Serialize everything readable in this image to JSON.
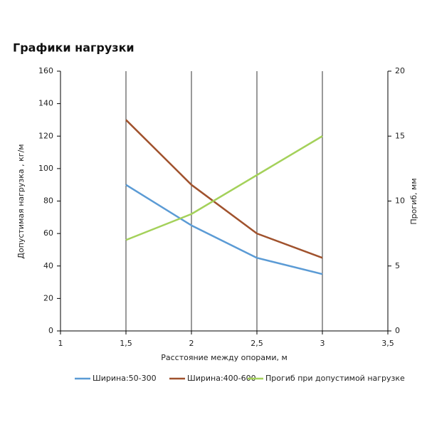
{
  "chart_data": {
    "type": "line",
    "title": "Графики нагрузки",
    "x_label": "Расстояние между опорами, м",
    "y_label": "Допустимая нагрузка , кг/м",
    "y2_label": "Прогиб, мм",
    "x": [
      1.5,
      2,
      2.5,
      3
    ],
    "xlim": [
      1,
      3.5
    ],
    "xticks": [
      1,
      {
        "value": 1.5,
        "label": "1,5"
      },
      2,
      {
        "value": 2.5,
        "label": "2,5"
      },
      3,
      {
        "value": 3.5,
        "label": "3,5"
      }
    ],
    "ylim": [
      0,
      160
    ],
    "yticks": [
      0,
      20,
      40,
      60,
      80,
      100,
      120,
      140,
      160
    ],
    "y2lim": [
      0,
      20
    ],
    "y2ticks": [
      0,
      5,
      10,
      15,
      20
    ],
    "grid": true,
    "series": [
      {
        "name": "Ширина:50-300",
        "color": "#5b9bd5",
        "values": [
          90,
          65,
          45,
          35
        ]
      },
      {
        "name": "Ширина:400-600",
        "color": "#a0522d",
        "values": [
          130,
          90,
          60,
          45
        ]
      },
      {
        "name": "Прогиб при допустимой нагрузке",
        "color": "#a4d15a",
        "values": [
          7,
          9,
          12,
          15
        ],
        "axis": "y2"
      }
    ]
  }
}
